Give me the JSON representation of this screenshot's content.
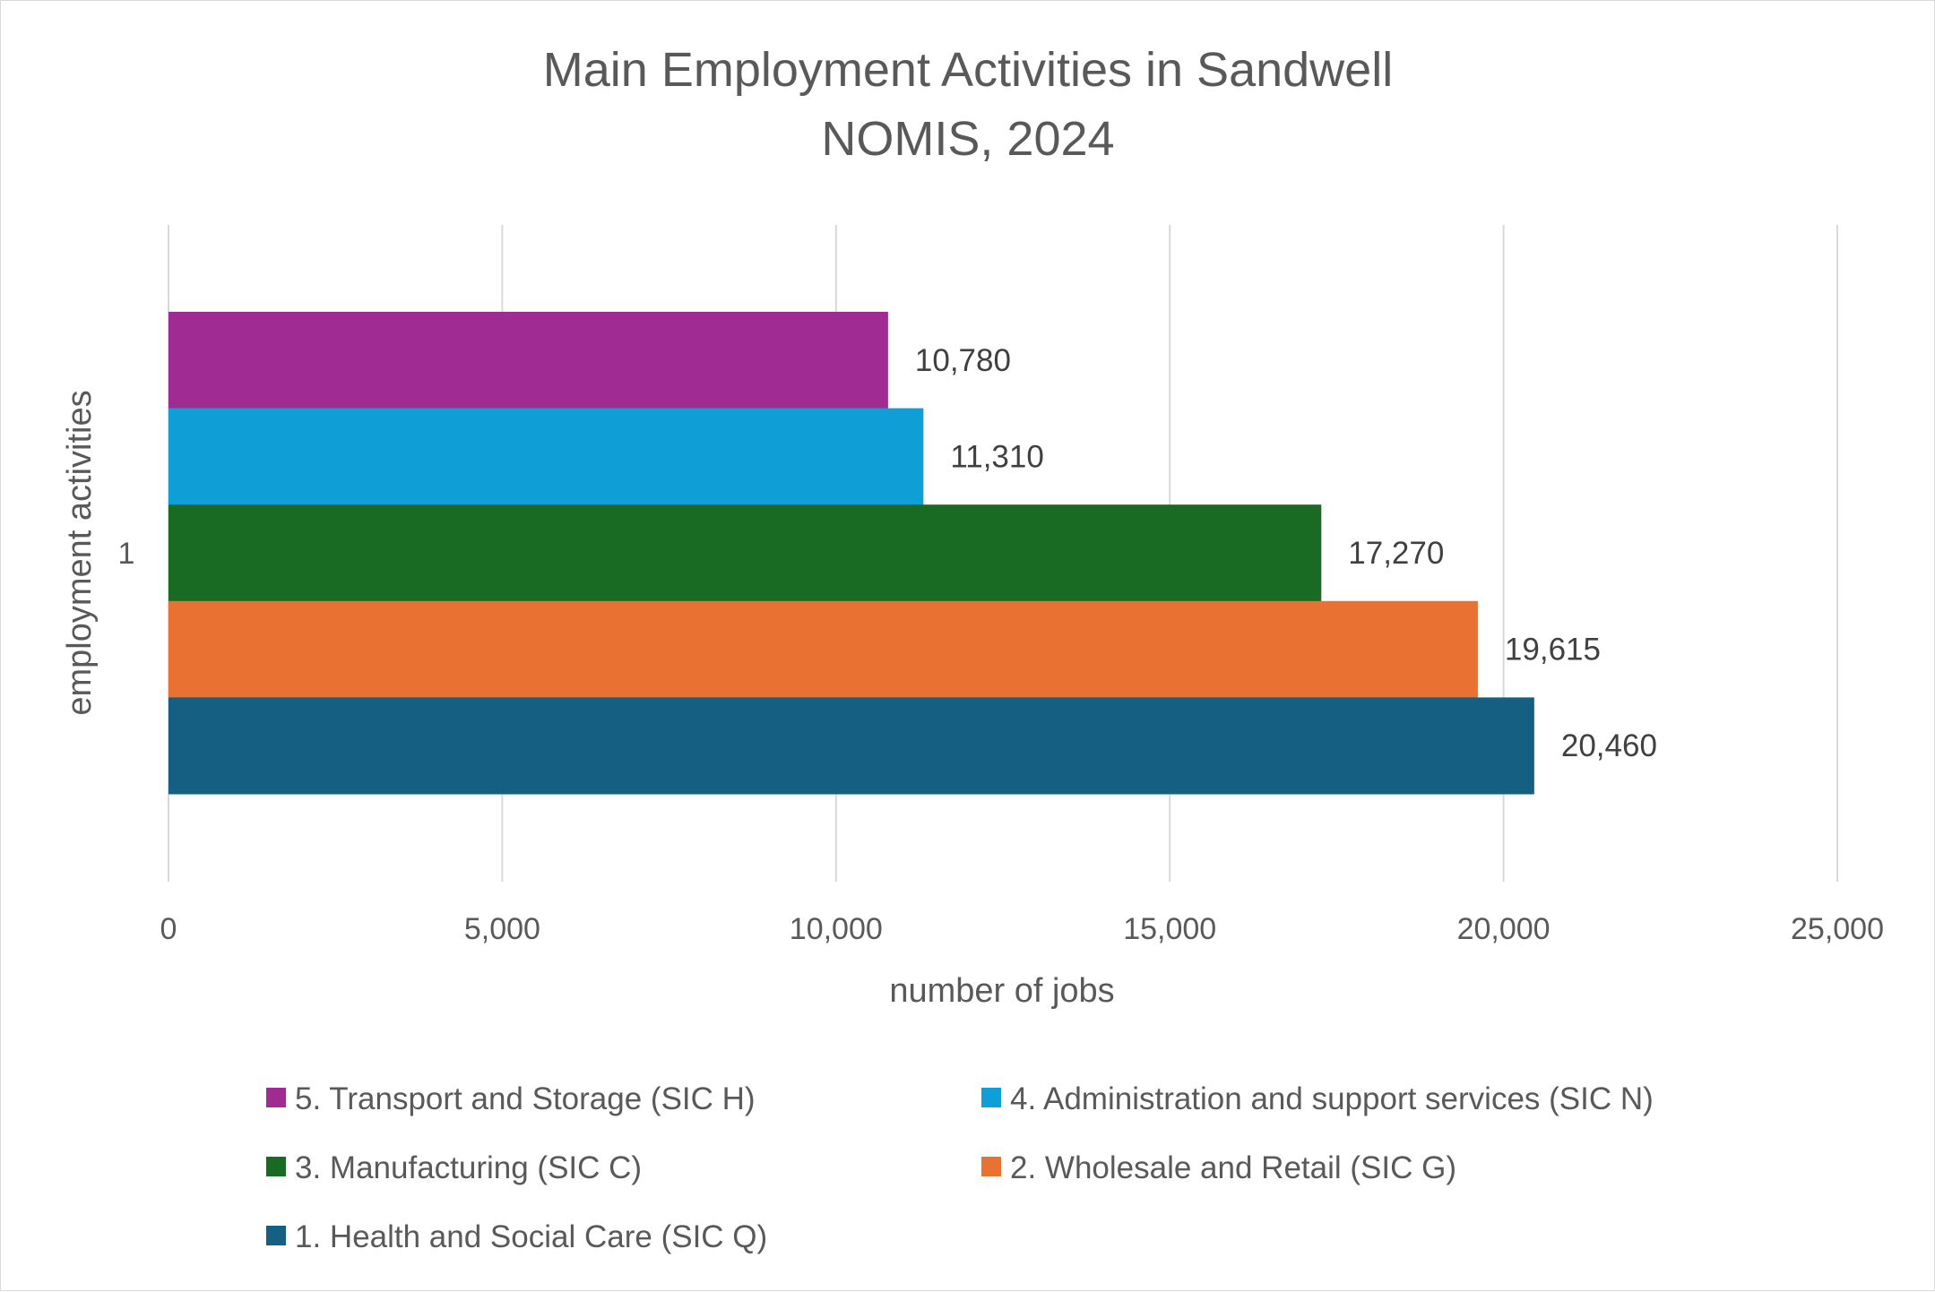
{
  "chart_data": {
    "type": "bar",
    "orientation": "horizontal",
    "title": "Main Employment Activities in Sandwell",
    "subtitle": "NOMIS, 2024",
    "xlabel": "number of jobs",
    "ylabel": "employment activities",
    "categories": [
      "1"
    ],
    "xlim": [
      0,
      25000
    ],
    "x_ticks": [
      "0",
      "5,000",
      "10,000",
      "15,000",
      "20,000",
      "25,000"
    ],
    "grid": true,
    "legend_position": "bottom",
    "series": [
      {
        "name": "5. Transport and Storage (SIC H)",
        "values": [
          10780
        ],
        "label": "10,780",
        "color": "#A02B93"
      },
      {
        "name": "4. Administration and support services (SIC N)",
        "values": [
          11310
        ],
        "label": "11,310",
        "color": "#0F9ED5"
      },
      {
        "name": "3. Manufacturing (SIC C)",
        "values": [
          17270
        ],
        "label": "17,270",
        "color": "#196B24"
      },
      {
        "name": "2. Wholesale and Retail (SIC G)",
        "values": [
          19615
        ],
        "label": "19,615",
        "color": "#E97132"
      },
      {
        "name": "1. Health and Social Care (SIC Q)",
        "values": [
          20460
        ],
        "label": "20,460",
        "color": "#156082"
      }
    ]
  }
}
